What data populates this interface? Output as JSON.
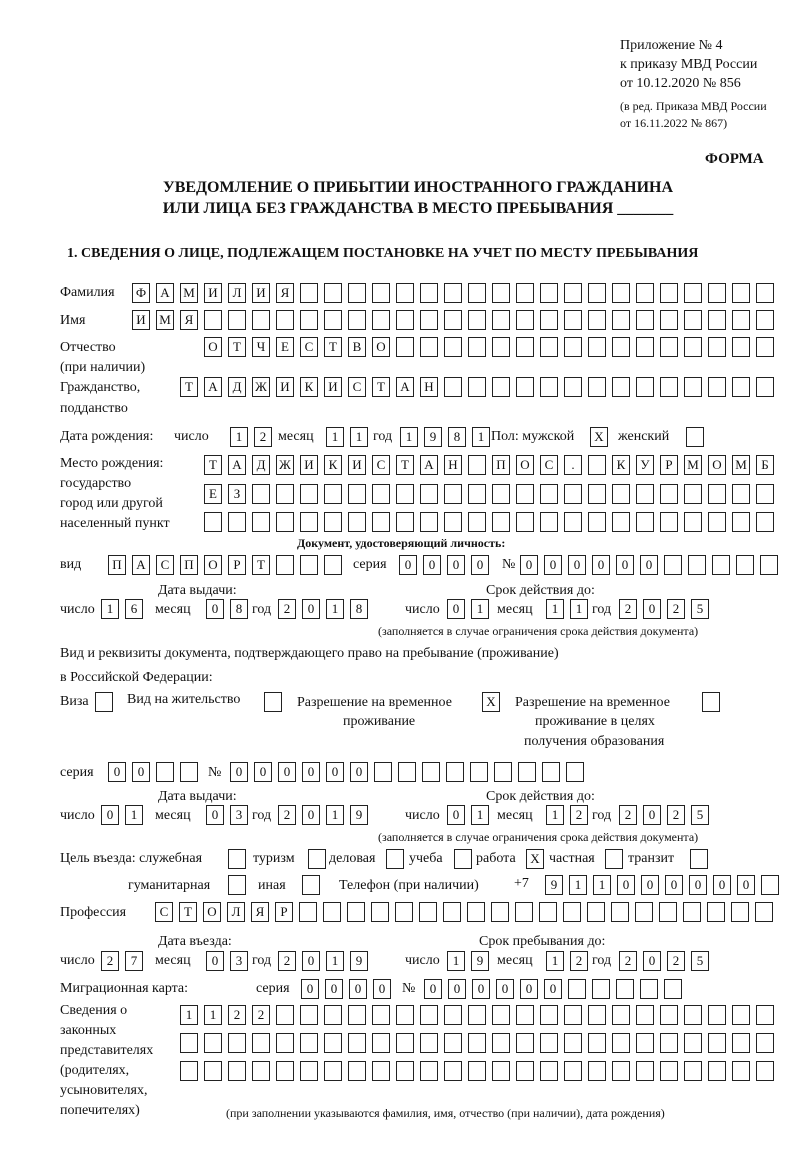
{
  "header": {
    "appendix": "Приложение № 4",
    "order": "к приказу МВД России",
    "order_date": "от 10.12.2020 № 856",
    "edition1": "(в ред. Приказа МВД России",
    "edition2": "от 16.11.2022 № 867)",
    "form_label": "ФОРМА",
    "title1": "УВЕДОМЛЕНИЕ О ПРИБЫТИИ ИНОСТРАННОГО ГРАЖДАНИНА",
    "title2": "ИЛИ ЛИЦА БЕЗ ГРАЖДАНСТВА В МЕСТО ПРЕБЫВАНИЯ _______",
    "section1": "1. СВЕДЕНИЯ О ЛИЦЕ, ПОДЛЕЖАЩЕМ ПОСТАНОВКЕ НА УЧЕТ ПО МЕСТУ ПРЕБЫВАНИЯ"
  },
  "labels": {
    "surname": "Фамилия",
    "name": "Имя",
    "patronymic1": "Отчество",
    "patronymic2": "(при наличии)",
    "citizenship1": "Гражданство,",
    "citizenship2": "подданство",
    "dob": "Дата рождения:",
    "day": "число",
    "month": "месяц",
    "year": "год",
    "sex": "Пол: мужской",
    "female": "женский",
    "pob1": "Место рождения:",
    "pob2": "государство",
    "pob3": "город или другой",
    "pob4": "населенный пункт",
    "id_doc": "Документ, удостоверяющий личность:",
    "kind": "вид",
    "series": "серия",
    "number": "№",
    "issue_date": "Дата выдачи:",
    "valid_until": "Срок действия до:",
    "valid_note": "(заполняется в случае ограничения срока действия документа)",
    "stay_doc1": "Вид и реквизиты документа, подтверждающего право на пребывание (проживание)",
    "stay_doc2": "в Российской Федерации:",
    "visa": "Виза",
    "residence": "Вид на жительство",
    "temp_res1": "Разрешение на временное",
    "temp_res2": "проживание",
    "temp_edu1": "Разрешение на временное",
    "temp_edu2": "проживание в целях",
    "temp_edu3": "получения образования",
    "purpose": "Цель въезда: служебная",
    "tourism": "туризм",
    "business": "деловая",
    "study": "учеба",
    "work": "работа",
    "private": "частная",
    "transit": "транзит",
    "humanitarian": "гуманитарная",
    "other": "иная",
    "phone": "Телефон (при наличии)",
    "phone_prefix": "+7",
    "profession": "Профессия",
    "entry_date": "Дата въезда:",
    "stay_until": "Срок пребывания до:",
    "migration_card": "Миграционная карта:",
    "reps1": "Сведения о",
    "reps2": "законных",
    "reps3": "представителях",
    "reps4": "(родителях,",
    "reps5": "усыновителях,",
    "reps6": "попечителях)",
    "reps_note": "(при заполнении указываются фамилия, имя, отчество (при наличии), дата рождения)"
  },
  "fields": {
    "surname": "ФАМИЛИЯ",
    "name": "ИМЯ",
    "patronymic": "ОТЧЕСТВО",
    "citizenship": "ТАДЖИКИСТАН",
    "dob_day": "12",
    "dob_month": "11",
    "dob_year": "1981",
    "sex_male": "X",
    "sex_female": "",
    "pob_line1": "ТАДЖИКИСТАН ПОС. КУРМОМБ",
    "pob_line2": "ЕЗ",
    "pob_line3": "",
    "id_kind": "ПАСПОРТ",
    "id_series": "0000",
    "id_number": "000000",
    "id_issue_day": "16",
    "id_issue_month": "08",
    "id_issue_year": "2018",
    "id_valid_day": "01",
    "id_valid_month": "11",
    "id_valid_year": "2025",
    "visa": "",
    "residence": "",
    "temp_res": "X",
    "temp_edu": "",
    "stay_series": "00",
    "stay_number": "000000",
    "stay_issue_day": "01",
    "stay_issue_month": "03",
    "stay_issue_year": "2019",
    "stay_valid_day": "01",
    "stay_valid_month": "12",
    "stay_valid_year": "2025",
    "p_service": "",
    "p_tourism": "",
    "p_business": "",
    "p_study": "",
    "p_work": "X",
    "p_private": "",
    "p_transit": "",
    "p_humanitarian": "",
    "p_other": "",
    "phone": "911000000",
    "profession": "СТОЛЯР",
    "entry_day": "27",
    "entry_month": "03",
    "entry_year": "2019",
    "until_day": "19",
    "until_month": "12",
    "until_year": "2025",
    "mc_series": "0000",
    "mc_number": "000000",
    "reps_line1": "1122",
    "reps_line2": "",
    "reps_line3": ""
  }
}
